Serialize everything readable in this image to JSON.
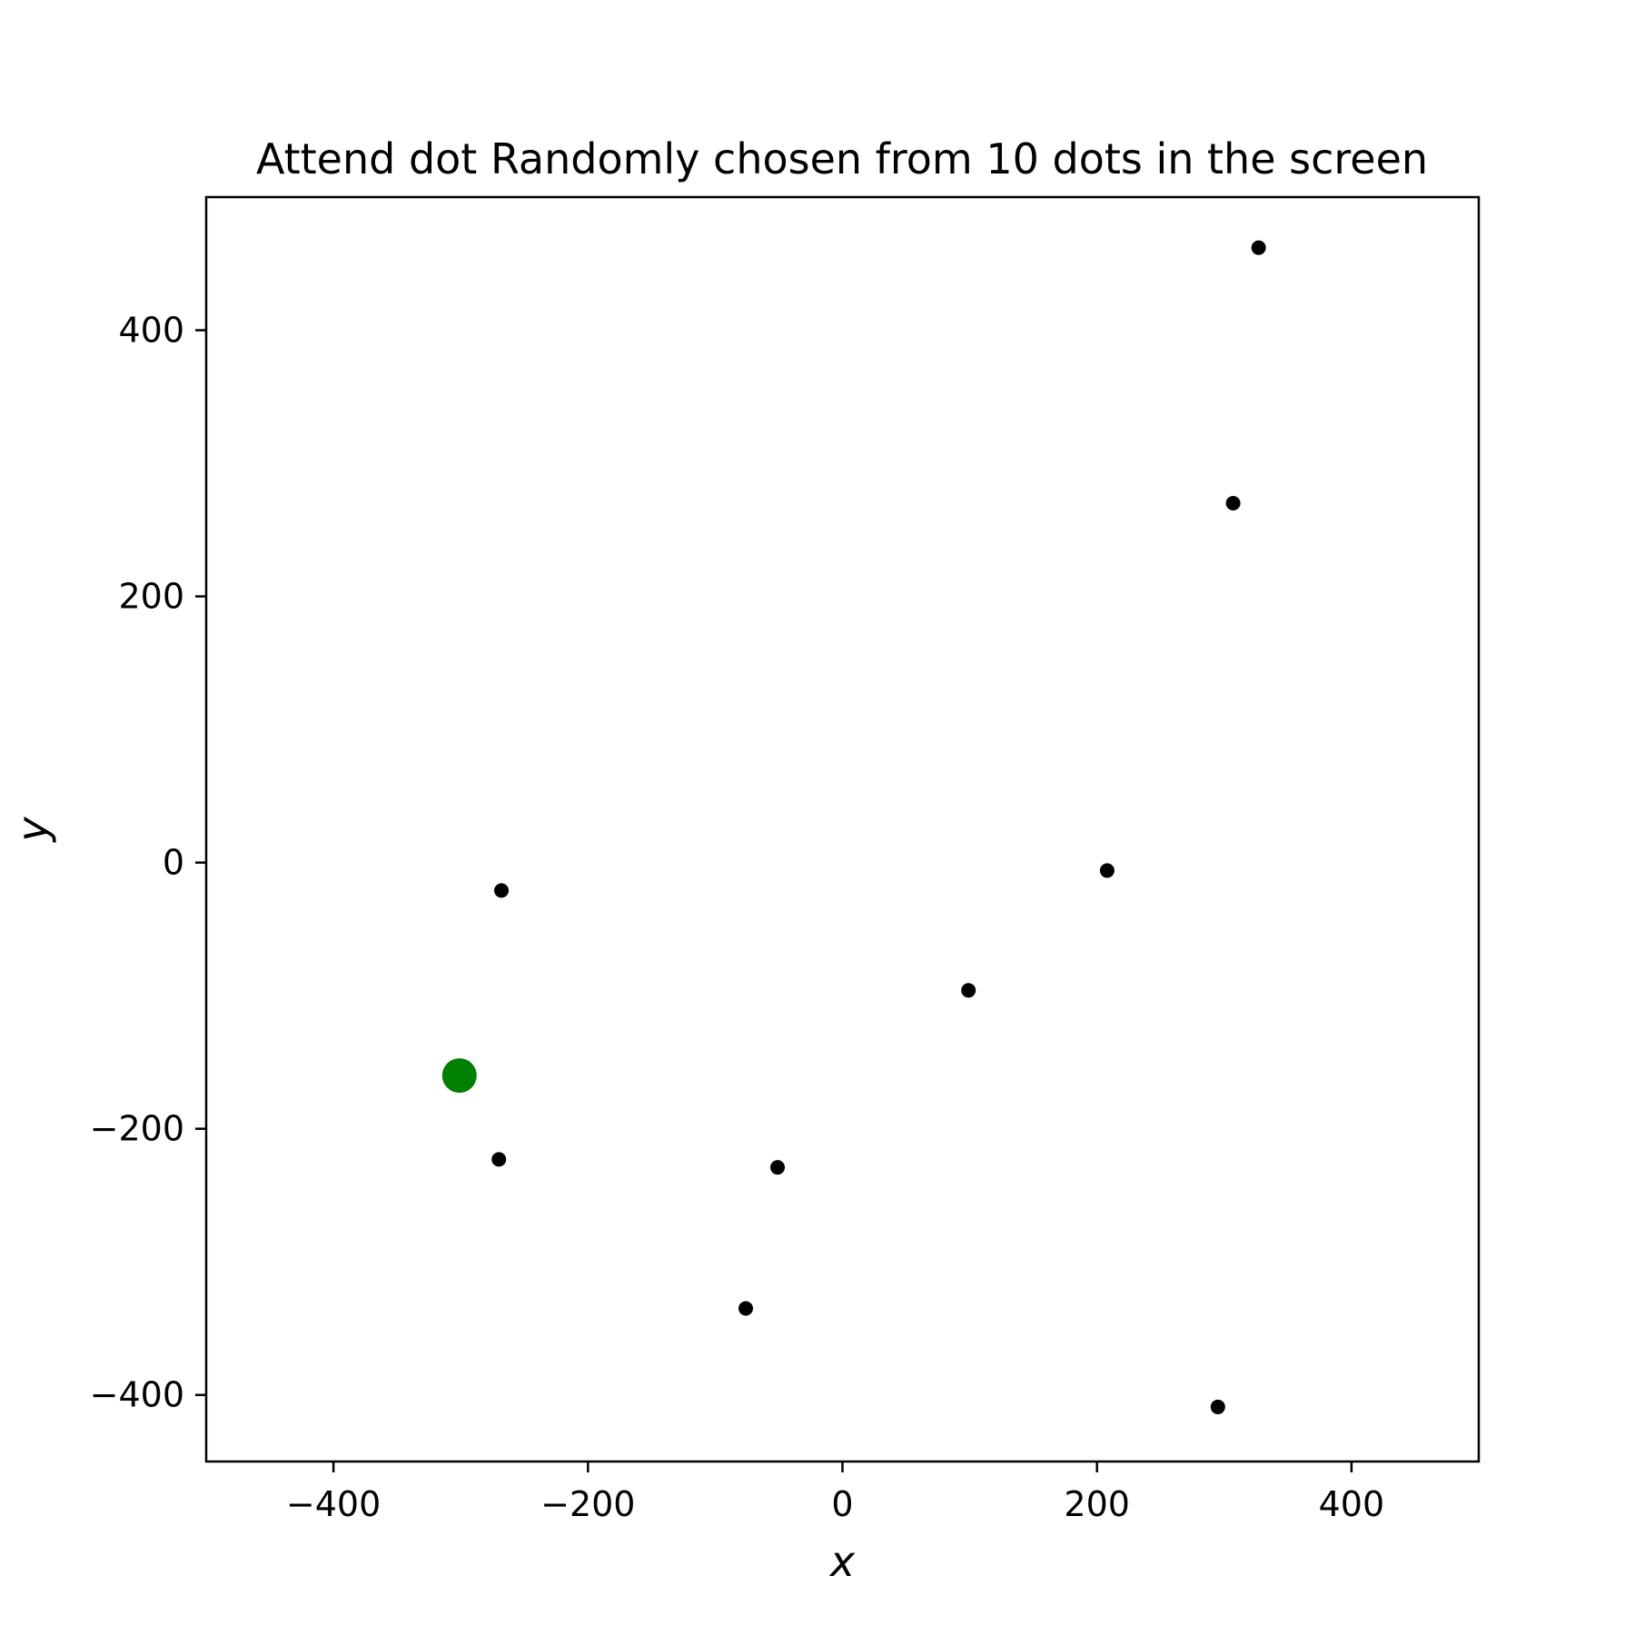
{
  "chart_data": {
    "type": "scatter",
    "title": "Attend dot Randomly chosen from 10 dots in the screen",
    "xlabel": "x",
    "ylabel": "y",
    "xlim": [
      -500,
      500
    ],
    "ylim": [
      -450,
      500
    ],
    "xticks": [
      -400,
      -200,
      0,
      200,
      400
    ],
    "yticks": [
      -400,
      -200,
      0,
      200,
      400
    ],
    "xtick_labels": [
      "−400",
      "−200",
      "0",
      "200",
      "400"
    ],
    "ytick_labels": [
      "−400",
      "−200",
      "0",
      "200",
      "400"
    ],
    "grid": false,
    "series": [
      {
        "color": "#000000",
        "points": [
          {
            "x": 327,
            "y": 462
          },
          {
            "x": 307,
            "y": 270
          },
          {
            "x": 208,
            "y": -6
          },
          {
            "x": -268,
            "y": -21
          },
          {
            "x": 99,
            "y": -96
          },
          {
            "x": -270,
            "y": -223
          },
          {
            "x": -51,
            "y": -229
          },
          {
            "x": -76,
            "y": -335
          },
          {
            "x": 295,
            "y": -409
          }
        ]
      },
      {
        "color": "#008000",
        "points": [
          {
            "x": -301,
            "y": -160
          }
        ]
      }
    ]
  }
}
